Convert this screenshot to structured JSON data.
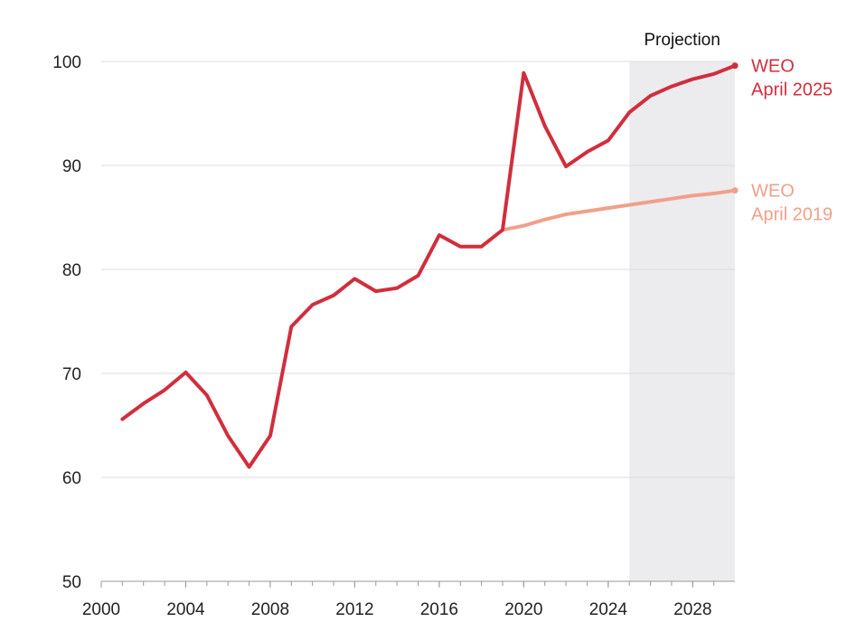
{
  "chart_data": {
    "type": "line",
    "projection_label": "Projection",
    "projection_start": 2025,
    "xlim": [
      2000,
      2030
    ],
    "ylim": [
      50,
      100
    ],
    "x_ticks": [
      2000,
      2004,
      2008,
      2012,
      2016,
      2020,
      2024,
      2028
    ],
    "y_ticks": [
      50,
      60,
      70,
      80,
      90,
      100
    ],
    "grid": true,
    "colors": {
      "grid": "#dddddd",
      "axis": "#999999",
      "shade": "#ececef"
    },
    "series": [
      {
        "label_line1": "WEO",
        "label_line2": "April 2025",
        "color": "#d12e3d",
        "x": [
          2001,
          2002,
          2003,
          2004,
          2005,
          2006,
          2007,
          2008,
          2009,
          2010,
          2011,
          2012,
          2013,
          2014,
          2015,
          2016,
          2017,
          2018,
          2019,
          2020,
          2021,
          2022,
          2023,
          2024,
          2025,
          2026,
          2027,
          2028,
          2029,
          2030
        ],
        "values": [
          65.6,
          67.1,
          68.4,
          70.1,
          67.9,
          64.0,
          61.0,
          64.0,
          74.5,
          76.6,
          77.5,
          79.1,
          77.9,
          78.2,
          79.4,
          83.3,
          82.2,
          82.2,
          83.8,
          98.9,
          93.8,
          89.9,
          91.3,
          92.4,
          95.1,
          96.7,
          97.6,
          98.3,
          98.8,
          99.6
        ]
      },
      {
        "label_line1": "WEO",
        "label_line2": "April 2019",
        "color": "#f0a08a",
        "x": [
          2019,
          2020,
          2021,
          2022,
          2023,
          2024,
          2025,
          2026,
          2027,
          2028,
          2029,
          2030
        ],
        "values": [
          83.8,
          84.2,
          84.8,
          85.3,
          85.6,
          85.9,
          86.2,
          86.5,
          86.8,
          87.1,
          87.3,
          87.6
        ]
      }
    ]
  }
}
